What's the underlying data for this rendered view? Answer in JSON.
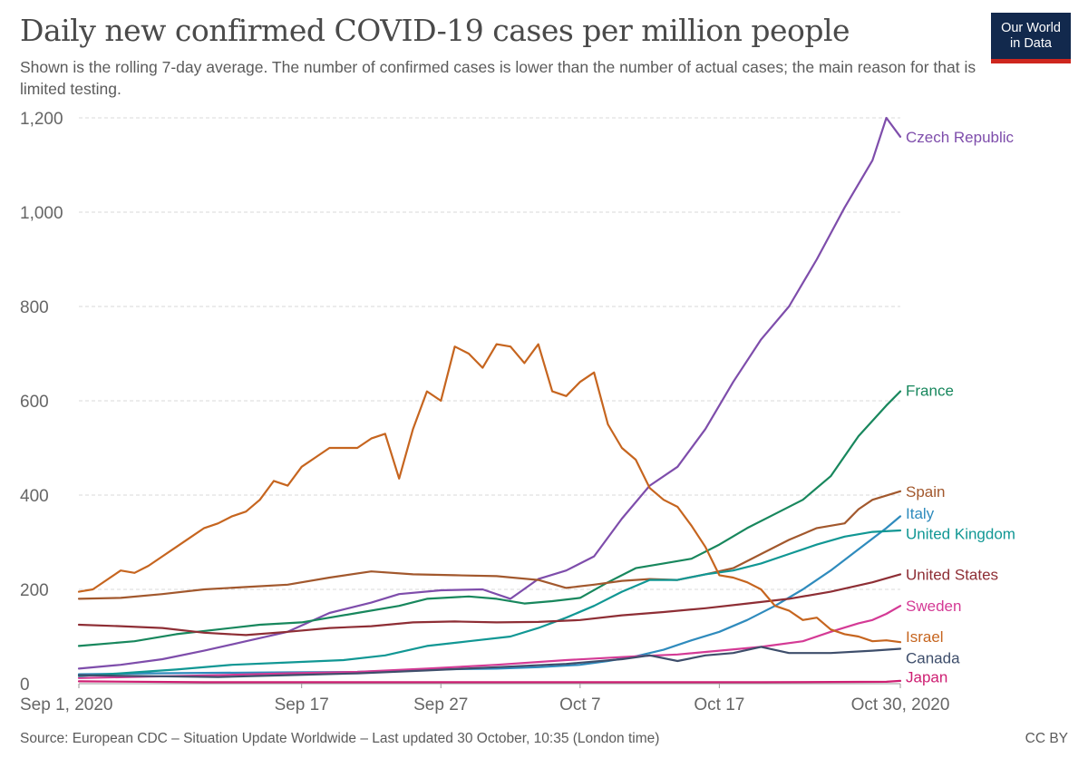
{
  "title": "Daily new confirmed COVID-19 cases per million people",
  "subtitle": "Shown is the rolling 7-day average. The number of confirmed cases is lower than the number of actual cases; the main reason for that is limited testing.",
  "logo": {
    "line1": "Our World",
    "line2": "in Data",
    "bg": "#12294d",
    "bar": "#ce261e"
  },
  "footer": {
    "source": "Source: European CDC – Situation Update Worldwide – Last updated 30 October, 10:35 (London time)",
    "license": "CC BY"
  },
  "chart_data": {
    "type": "line",
    "x_start": "2020-09-01",
    "x_end": "2020-10-30",
    "ylim": [
      0,
      1200
    ],
    "yticks": [
      0,
      200,
      400,
      600,
      800,
      1000,
      1200
    ],
    "ytick_labels": [
      "0",
      "200",
      "400",
      "600",
      "800",
      "1,000",
      "1,200"
    ],
    "xticks": [
      {
        "date": "2020-09-01",
        "label": "Sep 1, 2020"
      },
      {
        "date": "2020-09-17",
        "label": "Sep 17"
      },
      {
        "date": "2020-09-27",
        "label": "Sep 27"
      },
      {
        "date": "2020-10-07",
        "label": "Oct 7"
      },
      {
        "date": "2020-10-17",
        "label": "Oct 17"
      },
      {
        "date": "2020-10-30",
        "label": "Oct 30, 2020"
      }
    ],
    "grid": "horizontal-dashed",
    "legend": "inline-right",
    "series": [
      {
        "name": "Czech Republic",
        "color": "#7e4dab",
        "label_y": 1160,
        "points": [
          [
            "2020-09-01",
            32
          ],
          [
            "2020-09-04",
            40
          ],
          [
            "2020-09-07",
            52
          ],
          [
            "2020-09-10",
            70
          ],
          [
            "2020-09-13",
            90
          ],
          [
            "2020-09-16",
            110
          ],
          [
            "2020-09-19",
            150
          ],
          [
            "2020-09-22",
            172
          ],
          [
            "2020-09-24",
            190
          ],
          [
            "2020-09-27",
            198
          ],
          [
            "2020-09-30",
            200
          ],
          [
            "2020-10-02",
            180
          ],
          [
            "2020-10-04",
            222
          ],
          [
            "2020-10-06",
            240
          ],
          [
            "2020-10-08",
            270
          ],
          [
            "2020-10-10",
            350
          ],
          [
            "2020-10-12",
            420
          ],
          [
            "2020-10-14",
            460
          ],
          [
            "2020-10-16",
            540
          ],
          [
            "2020-10-18",
            640
          ],
          [
            "2020-10-20",
            730
          ],
          [
            "2020-10-22",
            800
          ],
          [
            "2020-10-24",
            900
          ],
          [
            "2020-10-26",
            1010
          ],
          [
            "2020-10-28",
            1110
          ],
          [
            "2020-10-29",
            1200
          ],
          [
            "2020-10-30",
            1160
          ]
        ]
      },
      {
        "name": "France",
        "color": "#18875d",
        "label_y": 622,
        "points": [
          [
            "2020-09-01",
            80
          ],
          [
            "2020-09-05",
            90
          ],
          [
            "2020-09-08",
            105
          ],
          [
            "2020-09-11",
            115
          ],
          [
            "2020-09-14",
            125
          ],
          [
            "2020-09-17",
            130
          ],
          [
            "2020-09-21",
            150
          ],
          [
            "2020-09-24",
            165
          ],
          [
            "2020-09-26",
            180
          ],
          [
            "2020-09-29",
            185
          ],
          [
            "2020-10-01",
            180
          ],
          [
            "2020-10-03",
            170
          ],
          [
            "2020-10-05",
            175
          ],
          [
            "2020-10-07",
            182
          ],
          [
            "2020-10-09",
            215
          ],
          [
            "2020-10-11",
            245
          ],
          [
            "2020-10-13",
            255
          ],
          [
            "2020-10-15",
            265
          ],
          [
            "2020-10-17",
            295
          ],
          [
            "2020-10-19",
            330
          ],
          [
            "2020-10-21",
            360
          ],
          [
            "2020-10-23",
            390
          ],
          [
            "2020-10-25",
            440
          ],
          [
            "2020-10-27",
            525
          ],
          [
            "2020-10-29",
            590
          ],
          [
            "2020-10-30",
            620
          ]
        ]
      },
      {
        "name": "Spain",
        "color": "#a2582d",
        "label_y": 408,
        "points": [
          [
            "2020-09-01",
            180
          ],
          [
            "2020-09-04",
            182
          ],
          [
            "2020-09-07",
            190
          ],
          [
            "2020-09-10",
            200
          ],
          [
            "2020-09-13",
            205
          ],
          [
            "2020-09-16",
            210
          ],
          [
            "2020-09-19",
            225
          ],
          [
            "2020-09-22",
            238
          ],
          [
            "2020-09-25",
            232
          ],
          [
            "2020-09-28",
            230
          ],
          [
            "2020-10-01",
            228
          ],
          [
            "2020-10-04",
            220
          ],
          [
            "2020-10-06",
            203
          ],
          [
            "2020-10-08",
            210
          ],
          [
            "2020-10-10",
            218
          ],
          [
            "2020-10-12",
            222
          ],
          [
            "2020-10-14",
            220
          ],
          [
            "2020-10-16",
            232
          ],
          [
            "2020-10-18",
            245
          ],
          [
            "2020-10-20",
            275
          ],
          [
            "2020-10-22",
            305
          ],
          [
            "2020-10-24",
            330
          ],
          [
            "2020-10-26",
            340
          ],
          [
            "2020-10-27",
            370
          ],
          [
            "2020-10-28",
            390
          ],
          [
            "2020-10-30",
            408
          ]
        ]
      },
      {
        "name": "Italy",
        "color": "#2f8bbd",
        "label_y": 362,
        "points": [
          [
            "2020-09-01",
            20
          ],
          [
            "2020-09-06",
            22
          ],
          [
            "2020-09-11",
            23
          ],
          [
            "2020-09-16",
            24
          ],
          [
            "2020-09-21",
            25
          ],
          [
            "2020-09-26",
            30
          ],
          [
            "2020-10-01",
            32
          ],
          [
            "2020-10-04",
            35
          ],
          [
            "2020-10-07",
            40
          ],
          [
            "2020-10-09",
            48
          ],
          [
            "2020-10-11",
            58
          ],
          [
            "2020-10-13",
            72
          ],
          [
            "2020-10-15",
            92
          ],
          [
            "2020-10-17",
            110
          ],
          [
            "2020-10-19",
            135
          ],
          [
            "2020-10-21",
            165
          ],
          [
            "2020-10-23",
            200
          ],
          [
            "2020-10-25",
            240
          ],
          [
            "2020-10-27",
            285
          ],
          [
            "2020-10-29",
            330
          ],
          [
            "2020-10-30",
            355
          ]
        ]
      },
      {
        "name": "United Kingdom",
        "color": "#119794",
        "label_y": 318,
        "points": [
          [
            "2020-09-01",
            16
          ],
          [
            "2020-09-05",
            24
          ],
          [
            "2020-09-08",
            30
          ],
          [
            "2020-09-12",
            40
          ],
          [
            "2020-09-16",
            45
          ],
          [
            "2020-09-20",
            50
          ],
          [
            "2020-09-23",
            60
          ],
          [
            "2020-09-26",
            80
          ],
          [
            "2020-09-29",
            90
          ],
          [
            "2020-10-02",
            100
          ],
          [
            "2020-10-04",
            118
          ],
          [
            "2020-10-06",
            140
          ],
          [
            "2020-10-08",
            165
          ],
          [
            "2020-10-10",
            195
          ],
          [
            "2020-10-12",
            220
          ],
          [
            "2020-10-14",
            220
          ],
          [
            "2020-10-16",
            232
          ],
          [
            "2020-10-18",
            240
          ],
          [
            "2020-10-20",
            255
          ],
          [
            "2020-10-22",
            275
          ],
          [
            "2020-10-24",
            295
          ],
          [
            "2020-10-26",
            312
          ],
          [
            "2020-10-28",
            322
          ],
          [
            "2020-10-30",
            325
          ]
        ]
      },
      {
        "name": "United States",
        "color": "#8e2e35",
        "label_y": 232,
        "points": [
          [
            "2020-09-01",
            125
          ],
          [
            "2020-09-04",
            122
          ],
          [
            "2020-09-07",
            118
          ],
          [
            "2020-09-10",
            108
          ],
          [
            "2020-09-13",
            103
          ],
          [
            "2020-09-16",
            110
          ],
          [
            "2020-09-19",
            118
          ],
          [
            "2020-09-22",
            122
          ],
          [
            "2020-09-25",
            130
          ],
          [
            "2020-09-28",
            132
          ],
          [
            "2020-10-01",
            130
          ],
          [
            "2020-10-04",
            131
          ],
          [
            "2020-10-07",
            135
          ],
          [
            "2020-10-10",
            145
          ],
          [
            "2020-10-13",
            152
          ],
          [
            "2020-10-16",
            160
          ],
          [
            "2020-10-19",
            170
          ],
          [
            "2020-10-22",
            180
          ],
          [
            "2020-10-25",
            195
          ],
          [
            "2020-10-28",
            215
          ],
          [
            "2020-10-30",
            232
          ]
        ]
      },
      {
        "name": "Sweden",
        "color": "#d43a95",
        "label_y": 165,
        "points": [
          [
            "2020-09-01",
            12
          ],
          [
            "2020-09-06",
            15
          ],
          [
            "2020-09-11",
            18
          ],
          [
            "2020-09-16",
            22
          ],
          [
            "2020-09-21",
            25
          ],
          [
            "2020-09-26",
            32
          ],
          [
            "2020-10-01",
            40
          ],
          [
            "2020-10-06",
            50
          ],
          [
            "2020-10-11",
            58
          ],
          [
            "2020-10-14",
            62
          ],
          [
            "2020-10-17",
            70
          ],
          [
            "2020-10-20",
            78
          ],
          [
            "2020-10-23",
            90
          ],
          [
            "2020-10-25",
            110
          ],
          [
            "2020-10-27",
            128
          ],
          [
            "2020-10-28",
            135
          ],
          [
            "2020-10-29",
            148
          ],
          [
            "2020-10-30",
            165
          ]
        ]
      },
      {
        "name": "Israel",
        "color": "#c6651f",
        "label_y": 100,
        "points": [
          [
            "2020-09-01",
            195
          ],
          [
            "2020-09-02",
            200
          ],
          [
            "2020-09-03",
            220
          ],
          [
            "2020-09-04",
            240
          ],
          [
            "2020-09-05",
            235
          ],
          [
            "2020-09-06",
            250
          ],
          [
            "2020-09-07",
            270
          ],
          [
            "2020-09-08",
            290
          ],
          [
            "2020-09-09",
            310
          ],
          [
            "2020-09-10",
            330
          ],
          [
            "2020-09-11",
            340
          ],
          [
            "2020-09-12",
            355
          ],
          [
            "2020-09-13",
            365
          ],
          [
            "2020-09-14",
            390
          ],
          [
            "2020-09-15",
            430
          ],
          [
            "2020-09-16",
            420
          ],
          [
            "2020-09-17",
            460
          ],
          [
            "2020-09-18",
            480
          ],
          [
            "2020-09-19",
            500
          ],
          [
            "2020-09-20",
            500
          ],
          [
            "2020-09-21",
            500
          ],
          [
            "2020-09-22",
            520
          ],
          [
            "2020-09-23",
            530
          ],
          [
            "2020-09-24",
            435
          ],
          [
            "2020-09-25",
            540
          ],
          [
            "2020-09-26",
            620
          ],
          [
            "2020-09-27",
            600
          ],
          [
            "2020-09-28",
            715
          ],
          [
            "2020-09-29",
            700
          ],
          [
            "2020-09-30",
            670
          ],
          [
            "2020-10-01",
            720
          ],
          [
            "2020-10-02",
            715
          ],
          [
            "2020-10-03",
            680
          ],
          [
            "2020-10-04",
            720
          ],
          [
            "2020-10-05",
            620
          ],
          [
            "2020-10-06",
            610
          ],
          [
            "2020-10-07",
            640
          ],
          [
            "2020-10-08",
            660
          ],
          [
            "2020-10-09",
            550
          ],
          [
            "2020-10-10",
            500
          ],
          [
            "2020-10-11",
            475
          ],
          [
            "2020-10-12",
            415
          ],
          [
            "2020-10-13",
            390
          ],
          [
            "2020-10-14",
            375
          ],
          [
            "2020-10-15",
            335
          ],
          [
            "2020-10-16",
            290
          ],
          [
            "2020-10-17",
            230
          ],
          [
            "2020-10-18",
            225
          ],
          [
            "2020-10-19",
            215
          ],
          [
            "2020-10-20",
            200
          ],
          [
            "2020-10-21",
            165
          ],
          [
            "2020-10-22",
            155
          ],
          [
            "2020-10-23",
            135
          ],
          [
            "2020-10-24",
            140
          ],
          [
            "2020-10-25",
            115
          ],
          [
            "2020-10-26",
            105
          ],
          [
            "2020-10-27",
            100
          ],
          [
            "2020-10-28",
            90
          ],
          [
            "2020-10-29",
            92
          ],
          [
            "2020-10-30",
            88
          ]
        ]
      },
      {
        "name": "Canada",
        "color": "#3e4e6b",
        "label_y": 55,
        "points": [
          [
            "2020-09-01",
            18
          ],
          [
            "2020-09-06",
            16
          ],
          [
            "2020-09-11",
            14
          ],
          [
            "2020-09-16",
            18
          ],
          [
            "2020-09-21",
            22
          ],
          [
            "2020-09-26",
            28
          ],
          [
            "2020-10-01",
            35
          ],
          [
            "2020-10-06",
            42
          ],
          [
            "2020-10-10",
            52
          ],
          [
            "2020-10-12",
            60
          ],
          [
            "2020-10-14",
            48
          ],
          [
            "2020-10-16",
            60
          ],
          [
            "2020-10-18",
            65
          ],
          [
            "2020-10-20",
            78
          ],
          [
            "2020-10-22",
            65
          ],
          [
            "2020-10-25",
            65
          ],
          [
            "2020-10-28",
            70
          ],
          [
            "2020-10-30",
            74
          ]
        ]
      },
      {
        "name": "Japan",
        "color": "#ce1e72",
        "label_y": 14,
        "points": [
          [
            "2020-09-01",
            5
          ],
          [
            "2020-09-10",
            3
          ],
          [
            "2020-09-20",
            3
          ],
          [
            "2020-10-01",
            3
          ],
          [
            "2020-10-10",
            3
          ],
          [
            "2020-10-20",
            3
          ],
          [
            "2020-10-29",
            4
          ],
          [
            "2020-10-30",
            6
          ]
        ]
      }
    ]
  }
}
